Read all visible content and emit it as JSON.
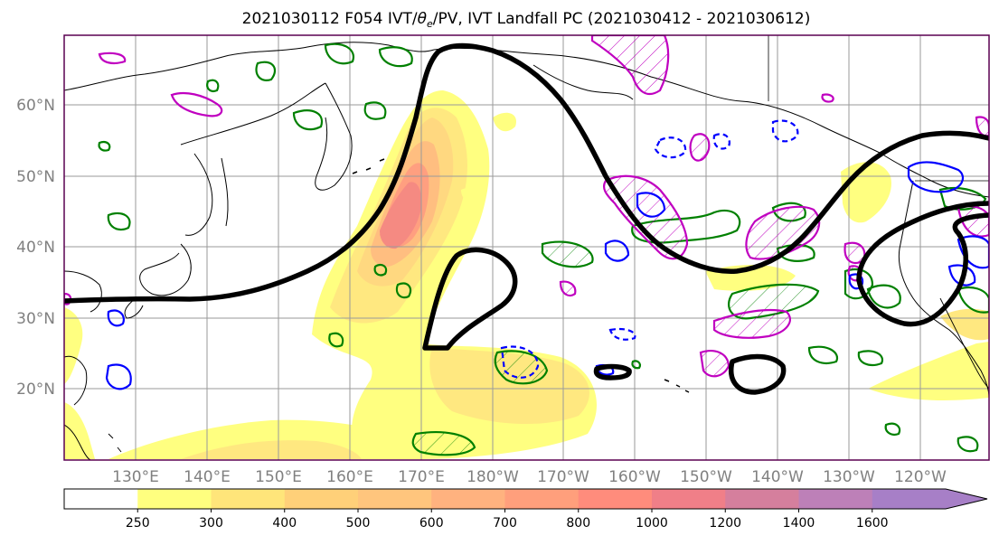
{
  "figure": {
    "title_prefix": "2021030112 F054 IVT/",
    "title_theta": "θ",
    "title_theta_sub": "e",
    "title_suffix": "/PV, IVT Landfall PC (2021030412 - 2021030612)"
  },
  "map": {
    "lat_labels": [
      "60°N",
      "50°N",
      "40°N",
      "30°N",
      "20°N"
    ],
    "lon_labels": [
      "130°E",
      "140°E",
      "150°E",
      "160°E",
      "170°E",
      "180°W",
      "170°W",
      "160°W",
      "150°W",
      "140°W",
      "130°W",
      "120°W"
    ],
    "gridlines": true,
    "lat_range": [
      10,
      70
    ],
    "lon_range": [
      120,
      250
    ]
  },
  "colorbar": {
    "ticks": [
      "250",
      "300",
      "400",
      "500",
      "600",
      "700",
      "800",
      "1000",
      "1200",
      "1400",
      "1600"
    ],
    "colors": [
      "#ffffff",
      "#ffff7f",
      "#ffe57a",
      "#ffd079",
      "#ffc57d",
      "#ffb27f",
      "#ff9f7c",
      "#ff8c7c",
      "#f07f88",
      "#d57f9d",
      "#bd80b8",
      "#a77fc7"
    ],
    "extend": "max"
  },
  "legend_colors": {
    "ivt_shading": "#ffff7f",
    "pc_contour": "#000000",
    "theta_e_contour": "#008000",
    "pv_positive_contour": "#c000c0",
    "pv_negative_contour": "#0000ff"
  },
  "chart_data": {
    "type": "heatmap",
    "title": "2021030112 F054 IVT/θe/PV, IVT Landfall PC (2021030412 - 2021030612)",
    "variable": "IVT",
    "colorbar_levels": [
      250,
      300,
      400,
      500,
      600,
      700,
      800,
      1000,
      1200,
      1400,
      1600
    ],
    "x_range": [
      "120°E",
      "110°W"
    ],
    "y_range": [
      "10°N",
      "70°N"
    ],
    "grid": true
  }
}
